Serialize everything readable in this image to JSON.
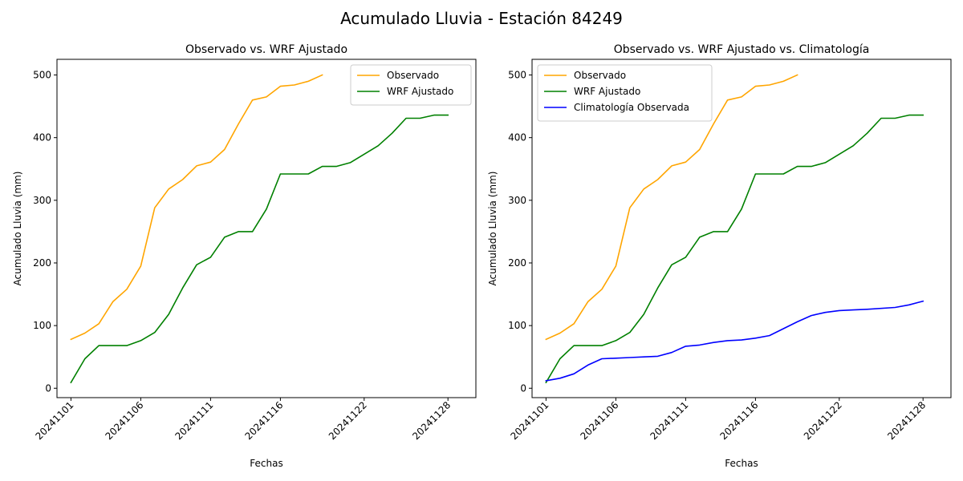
{
  "figure": {
    "suptitle": "Acumulado Lluvia - Estación 84249"
  },
  "colors": {
    "Observado": "#FFA500",
    "WRF Ajustado": "#008000",
    "Climatología Observada": "#0000FF"
  },
  "chart_data": [
    {
      "type": "line",
      "title": "Observado vs. WRF Ajustado",
      "xlabel": "Fechas",
      "ylabel": "Acumulado Lluvia (mm)",
      "x_ticks": [
        "20241101",
        "20241106",
        "20241111",
        "20241116",
        "20241122",
        "20241128"
      ],
      "xlim": [
        "20241031",
        "20241130"
      ],
      "ylim": [
        -15,
        525
      ],
      "y_ticks": [
        0,
        100,
        200,
        300,
        400,
        500
      ],
      "grid": false,
      "legend": "top-right",
      "series": [
        {
          "name": "Observado",
          "x": [
            "20241101",
            "20241102",
            "20241103",
            "20241104",
            "20241105",
            "20241106",
            "20241107",
            "20241108",
            "20241109",
            "20241110",
            "20241111",
            "20241112",
            "20241113",
            "20241114",
            "20241115",
            "20241116",
            "20241117",
            "20241118",
            "20241119"
          ],
          "values": [
            78,
            88,
            103,
            138,
            158,
            195,
            288,
            318,
            333,
            355,
            361,
            381,
            422,
            460,
            465,
            482,
            484,
            490,
            500
          ]
        },
        {
          "name": "WRF Ajustado",
          "x": [
            "20241101",
            "20241102",
            "20241103",
            "20241104",
            "20241105",
            "20241106",
            "20241107",
            "20241108",
            "20241109",
            "20241110",
            "20241111",
            "20241112",
            "20241113",
            "20241114",
            "20241115",
            "20241116",
            "20241118",
            "20241119",
            "20241120",
            "20241121",
            "20241123",
            "20241124",
            "20241125",
            "20241126",
            "20241127",
            "20241128"
          ],
          "values": [
            9,
            47,
            68,
            68,
            68,
            76,
            89,
            118,
            160,
            197,
            209,
            241,
            250,
            250,
            286,
            342,
            342,
            354,
            354,
            360,
            387,
            407,
            431,
            431,
            436,
            436
          ]
        }
      ]
    },
    {
      "type": "line",
      "title": "Observado vs. WRF Ajustado vs. Climatología",
      "xlabel": "Fechas",
      "ylabel": "Acumulado Lluvia (mm)",
      "x_ticks": [
        "20241101",
        "20241106",
        "20241111",
        "20241116",
        "20241122",
        "20241128"
      ],
      "xlim": [
        "20241031",
        "20241130"
      ],
      "ylim": [
        -15,
        525
      ],
      "y_ticks": [
        0,
        100,
        200,
        300,
        400,
        500
      ],
      "grid": false,
      "legend": "top-left",
      "series": [
        {
          "name": "Observado",
          "x": [
            "20241101",
            "20241102",
            "20241103",
            "20241104",
            "20241105",
            "20241106",
            "20241107",
            "20241108",
            "20241109",
            "20241110",
            "20241111",
            "20241112",
            "20241113",
            "20241114",
            "20241115",
            "20241116",
            "20241117",
            "20241118",
            "20241119"
          ],
          "values": [
            78,
            88,
            103,
            138,
            158,
            195,
            288,
            318,
            333,
            355,
            361,
            381,
            422,
            460,
            465,
            482,
            484,
            490,
            500
          ]
        },
        {
          "name": "WRF Ajustado",
          "x": [
            "20241101",
            "20241102",
            "20241103",
            "20241104",
            "20241105",
            "20241106",
            "20241107",
            "20241108",
            "20241109",
            "20241110",
            "20241111",
            "20241112",
            "20241113",
            "20241114",
            "20241115",
            "20241116",
            "20241118",
            "20241119",
            "20241120",
            "20241121",
            "20241123",
            "20241124",
            "20241125",
            "20241126",
            "20241127",
            "20241128"
          ],
          "values": [
            9,
            47,
            68,
            68,
            68,
            76,
            89,
            118,
            160,
            197,
            209,
            241,
            250,
            250,
            286,
            342,
            342,
            354,
            354,
            360,
            387,
            407,
            431,
            431,
            436,
            436
          ]
        },
        {
          "name": "Climatología Observada",
          "x": [
            "20241101",
            "20241102",
            "20241103",
            "20241104",
            "20241105",
            "20241106",
            "20241107",
            "20241108",
            "20241109",
            "20241110",
            "20241111",
            "20241112",
            "20241113",
            "20241114",
            "20241115",
            "20241116",
            "20241117",
            "20241118",
            "20241119",
            "20241120",
            "20241121",
            "20241122",
            "20241123",
            "20241124",
            "20241126",
            "20241127",
            "20241128"
          ],
          "values": [
            12,
            16,
            23,
            37,
            47,
            48,
            49,
            50,
            51,
            57,
            67,
            69,
            73,
            76,
            77,
            80,
            84,
            95,
            106,
            116,
            121,
            124,
            125,
            126,
            129,
            133,
            139
          ]
        }
      ]
    }
  ]
}
